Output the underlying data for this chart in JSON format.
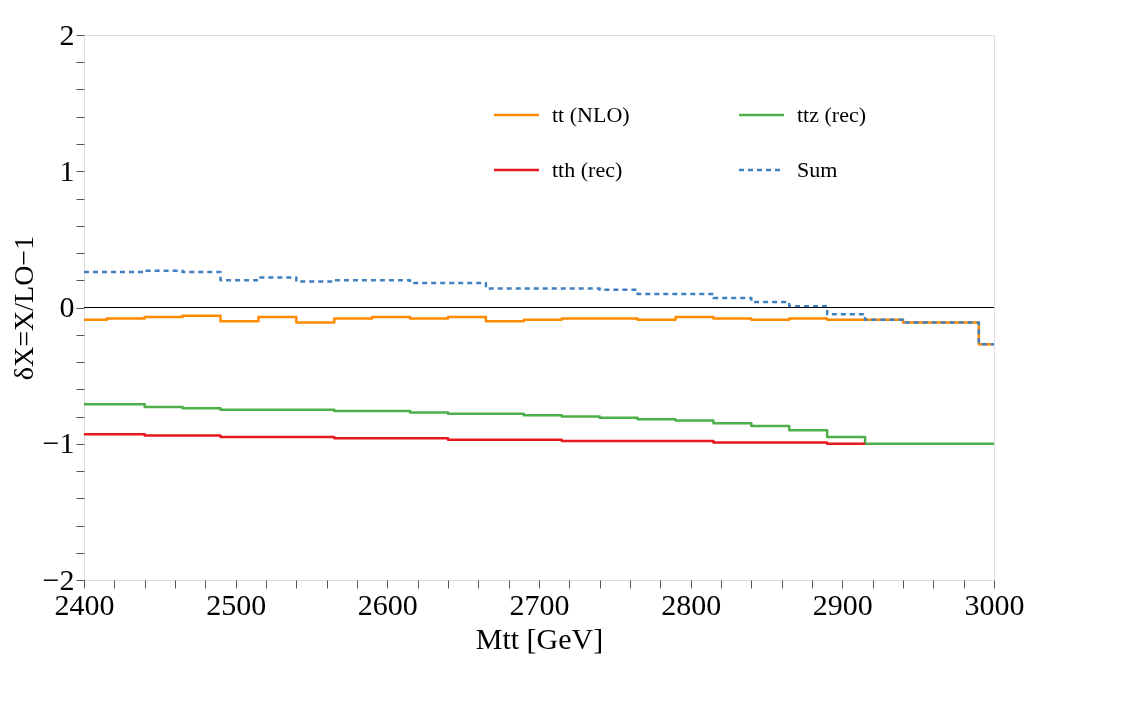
{
  "chart_data": {
    "type": "step",
    "xlabel": "Mtt [GeV]",
    "ylabel": "δX=X/LO−1",
    "x": [
      2400,
      2415,
      2440,
      2465,
      2490,
      2515,
      2540,
      2565,
      2590,
      2615,
      2640,
      2665,
      2690,
      2715,
      2740,
      2765,
      2790,
      2815,
      2840,
      2865,
      2890,
      2915,
      2940,
      2965,
      2990,
      3000
    ],
    "series": [
      {
        "name": "tt (NLO)",
        "color": "#ff8a00",
        "line_style": "solid",
        "values": [
          -0.09,
          -0.08,
          -0.07,
          -0.06,
          -0.1,
          -0.07,
          -0.11,
          -0.08,
          -0.07,
          -0.08,
          -0.07,
          -0.1,
          -0.09,
          -0.08,
          -0.08,
          -0.09,
          -0.07,
          -0.08,
          -0.09,
          -0.08,
          -0.09,
          -0.09,
          -0.11,
          -0.11,
          -0.27,
          -0.27
        ]
      },
      {
        "name": "ttz (rec)",
        "color": "#4caf48",
        "line_style": "solid",
        "values": [
          -0.71,
          -0.71,
          -0.73,
          -0.74,
          -0.75,
          -0.75,
          -0.75,
          -0.76,
          -0.76,
          -0.77,
          -0.78,
          -0.78,
          -0.79,
          -0.8,
          -0.81,
          -0.82,
          -0.83,
          -0.85,
          -0.87,
          -0.9,
          -0.95,
          -1,
          -1,
          -1,
          -1,
          -1
        ]
      },
      {
        "name": "tth (rec)",
        "color": "#e8191e",
        "line_style": "solid",
        "x": [
          2400,
          2415,
          2440,
          2465,
          2490,
          2515,
          2540,
          2565,
          2590,
          2615,
          2640,
          2665,
          2690,
          2715,
          2740,
          2765,
          2790,
          2815,
          2840,
          2865,
          2890,
          2915
        ],
        "values": [
          -0.93,
          -0.93,
          -0.94,
          -0.94,
          -0.95,
          -0.95,
          -0.95,
          -0.96,
          -0.96,
          -0.96,
          -0.97,
          -0.97,
          -0.97,
          -0.98,
          -0.98,
          -0.98,
          -0.98,
          -0.99,
          -0.99,
          -0.99,
          -1,
          -1
        ]
      },
      {
        "name": "Sum",
        "color": "#3f80c0",
        "line_style": "dashed",
        "values": [
          0.26,
          0.26,
          0.27,
          0.26,
          0.2,
          0.22,
          0.19,
          0.2,
          0.2,
          0.18,
          0.18,
          0.14,
          0.14,
          0.14,
          0.13,
          0.1,
          0.1,
          0.07,
          0.04,
          0.01,
          -0.05,
          -0.09,
          -0.11,
          -0.11,
          -0.27,
          -0.27
        ]
      }
    ],
    "xlim": [
      2400,
      3000
    ],
    "xticks": [
      2400,
      {
        "value": 2420,
        "label": null
      },
      {
        "value": 2440,
        "label": null
      },
      {
        "value": 2460,
        "label": null
      },
      {
        "value": 2480,
        "label": null
      },
      2500,
      {
        "value": 2520,
        "label": null
      },
      {
        "value": 2540,
        "label": null
      },
      {
        "value": 2560,
        "label": null
      },
      {
        "value": 2580,
        "label": null
      },
      2600,
      {
        "value": 2620,
        "label": null
      },
      {
        "value": 2640,
        "label": null
      },
      {
        "value": 2660,
        "label": null
      },
      {
        "value": 2680,
        "label": null
      },
      2700,
      {
        "value": 2720,
        "label": null
      },
      {
        "value": 2740,
        "label": null
      },
      {
        "value": 2760,
        "label": null
      },
      {
        "value": 2780,
        "label": null
      },
      2800,
      {
        "value": 2820,
        "label": null
      },
      {
        "value": 2840,
        "label": null
      },
      {
        "value": 2860,
        "label": null
      },
      {
        "value": 2880,
        "label": null
      },
      2900,
      {
        "value": 2920,
        "label": null
      },
      {
        "value": 2940,
        "label": null
      },
      {
        "value": 2960,
        "label": null
      },
      {
        "value": 2980,
        "label": null
      },
      3000
    ],
    "ylim": [
      -2,
      2
    ],
    "yticks": [
      {
        "value": -2,
        "label": "−2"
      },
      {
        "value": -1.8,
        "label": null
      },
      {
        "value": -1.6,
        "label": null
      },
      {
        "value": -1.4,
        "label": null
      },
      {
        "value": -1.2,
        "label": null
      },
      {
        "value": -1,
        "label": "−1"
      },
      {
        "value": -0.8,
        "label": null
      },
      {
        "value": -0.6,
        "label": null
      },
      {
        "value": -0.4,
        "label": null
      },
      {
        "value": -0.2,
        "label": null
      },
      0,
      {
        "value": 0.2,
        "label": null
      },
      {
        "value": 0.4,
        "label": null
      },
      {
        "value": 0.6,
        "label": null
      },
      {
        "value": 0.8,
        "label": null
      },
      1,
      {
        "value": 1.2,
        "label": null
      },
      {
        "value": 1.4,
        "label": null
      },
      {
        "value": 1.6,
        "label": null
      },
      {
        "value": 1.8,
        "label": null
      },
      2
    ],
    "ref_lines": [
      {
        "axis": "y",
        "value": 0,
        "color": "#000000"
      }
    ],
    "grid": false,
    "legend": "top right"
  }
}
